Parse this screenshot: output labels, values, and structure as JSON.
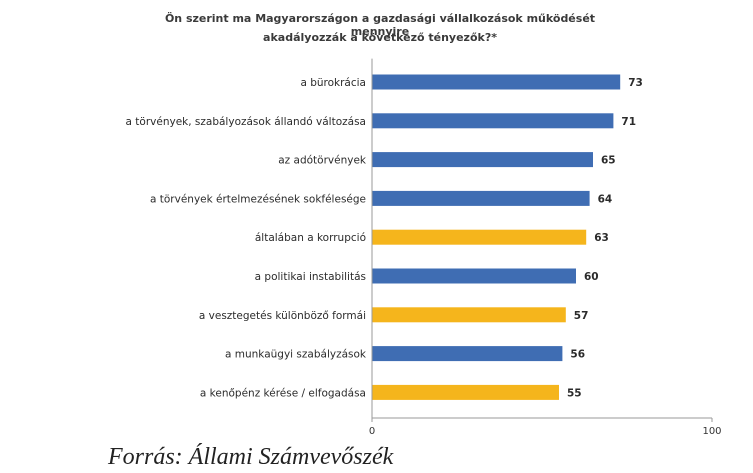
{
  "chart_data": {
    "type": "bar",
    "orientation": "horizontal",
    "title_lines": [
      "Ön szerint ma Magyarországon a gazdasági vállalkozások működését mennyire",
      "akadályozzák a következő tényezők?*"
    ],
    "categories": [
      "a bürokrácia",
      "a törvények, szabályozások állandó változása",
      "az adótörvények",
      "a törvények értelmezésének sokféleségе",
      "általában a korrupció",
      "a politikai instabilitás",
      "a vesztegetés különböző formái",
      "a munkaügyi szabályzások",
      "a kenőpénz kérése / elfogadása"
    ],
    "values": [
      73,
      71,
      65,
      64,
      63,
      60,
      57,
      56,
      55
    ],
    "bar_colors": [
      "#3f6db3",
      "#3f6db3",
      "#3f6db3",
      "#3f6db3",
      "#f5b51c",
      "#3f6db3",
      "#f5b51c",
      "#3f6db3",
      "#f5b51c"
    ],
    "xlim": [
      0,
      100
    ],
    "xticks": [
      "0",
      "100"
    ],
    "grid": false,
    "source": "Forrás: Állami Számvevőszék"
  }
}
